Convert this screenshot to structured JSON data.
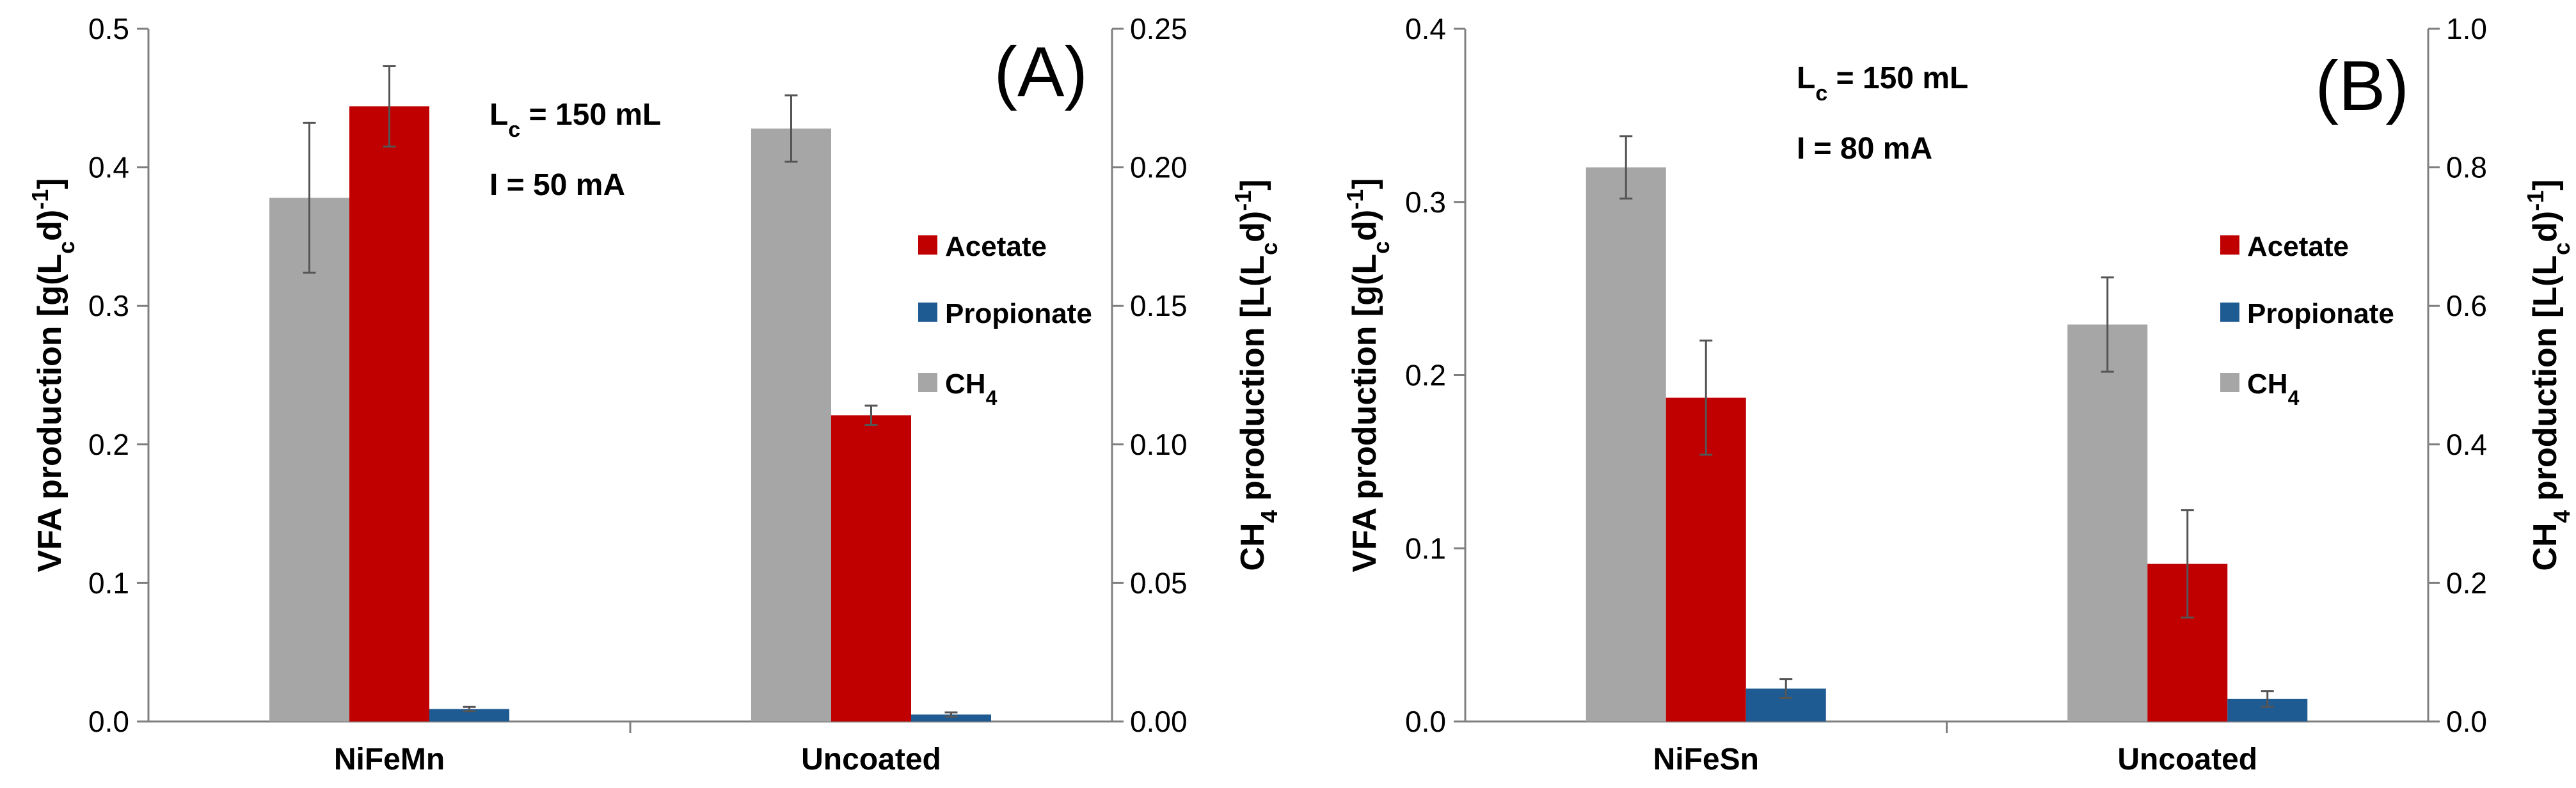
{
  "chart_data": [
    {
      "type": "bar",
      "panel_label": "(A)",
      "categories": [
        "NiFeMn",
        "Uncoated"
      ],
      "ylabel_left": {
        "main": "VFA production [g(L",
        "sub": "c",
        "post": "d)",
        "sup": "-1",
        "end": "]"
      },
      "ylabel_right": {
        "pre": "CH",
        "sub1": "4",
        "mid": " production [L(L",
        "sub2": "c",
        "post": "d)",
        "sup": "-1",
        "end": "]"
      },
      "ylim_left": [
        0,
        0.5
      ],
      "ylim_right": [
        0,
        0.25
      ],
      "yticks_left": [
        "0.0",
        "0.1",
        "0.2",
        "0.3",
        "0.4",
        "0.5"
      ],
      "yticks_right": [
        "0.00",
        "0.05",
        "0.10",
        "0.15",
        "0.20",
        "0.25"
      ],
      "series": [
        {
          "name": "CH",
          "name_sub": "4",
          "axis": "right",
          "color": "#a6a6a6",
          "values": [
            0.189,
            0.214
          ],
          "errors": [
            0.027,
            0.012
          ]
        },
        {
          "name": "Acetate",
          "axis": "left",
          "color": "#c00000",
          "values": [
            0.444,
            0.221
          ],
          "errors": [
            0.029,
            0.007
          ]
        },
        {
          "name": "Propionate",
          "axis": "left",
          "color": "#1f5b93",
          "values": [
            0.009,
            0.005
          ],
          "errors": [
            0.0015,
            0.0015
          ]
        }
      ],
      "annotations": {
        "lc": {
          "pre": "L",
          "sub": "c",
          "post": " = 150 mL"
        },
        "current": "I = 50 mA"
      },
      "grid": false,
      "legend_position": "right"
    },
    {
      "type": "bar",
      "panel_label": "(B)",
      "categories": [
        "NiFeSn",
        "Uncoated"
      ],
      "ylabel_left": {
        "main": "VFA production [g(L",
        "sub": "c",
        "post": "d)",
        "sup": "-1",
        "end": "]"
      },
      "ylabel_right": {
        "pre": "CH",
        "sub1": "4",
        "mid": " production [L(L",
        "sub2": "c",
        "post": "d)",
        "sup": "-1",
        "end": "]"
      },
      "ylim_left": [
        0,
        0.4
      ],
      "ylim_right": [
        0,
        1.0
      ],
      "yticks_left": [
        "0.0",
        "0.1",
        "0.2",
        "0.3",
        "0.4"
      ],
      "yticks_right": [
        "0.0",
        "0.2",
        "0.4",
        "0.6",
        "0.8",
        "1.0"
      ],
      "series": [
        {
          "name": "CH",
          "name_sub": "4",
          "axis": "right",
          "color": "#a6a6a6",
          "values": [
            0.8,
            0.573
          ],
          "errors": [
            0.045,
            0.068
          ]
        },
        {
          "name": "Acetate",
          "axis": "left",
          "color": "#c00000",
          "values": [
            0.187,
            0.091
          ],
          "errors": [
            0.033,
            0.031
          ]
        },
        {
          "name": "Propionate",
          "axis": "left",
          "color": "#1f5b93",
          "values": [
            0.019,
            0.013
          ],
          "errors": [
            0.0055,
            0.0045
          ]
        }
      ],
      "annotations": {
        "lc": {
          "pre": "L",
          "sub": "c",
          "post": " = 150 mL"
        },
        "current": "I = 80 mA"
      },
      "grid": false,
      "legend_position": "right"
    }
  ]
}
